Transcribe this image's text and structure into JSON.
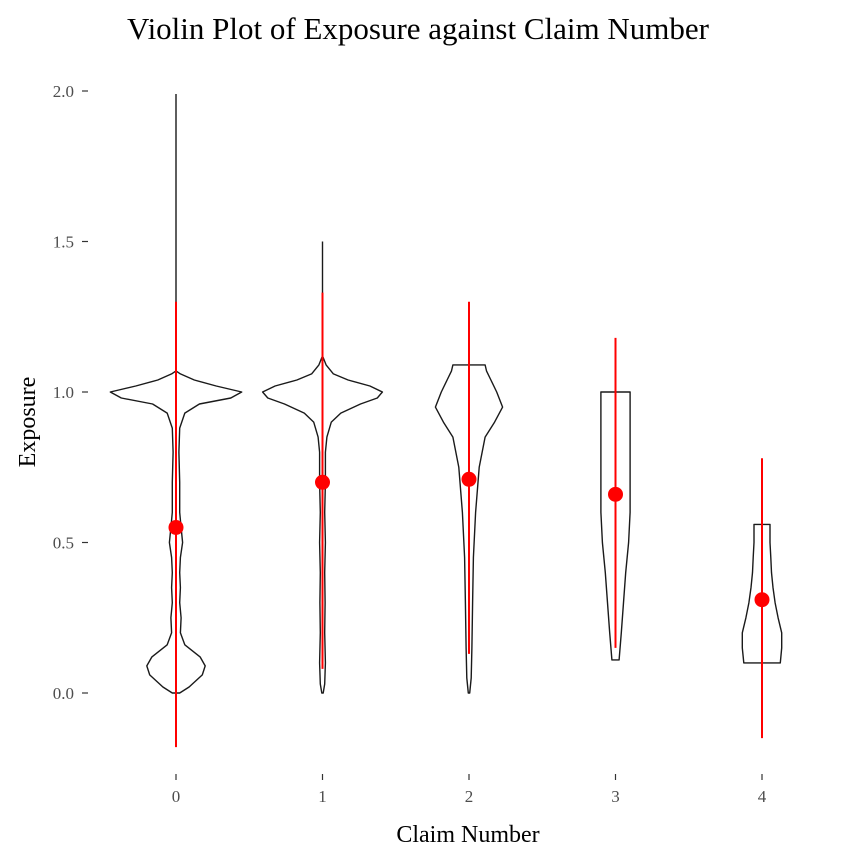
{
  "chart_data": {
    "type": "violin",
    "title": "Violin Plot of Exposure against Claim Number",
    "xlabel": "Claim Number",
    "ylabel": "Exposure",
    "categories": [
      "0",
      "1",
      "2",
      "3",
      "4"
    ],
    "y_ticks": [
      "0.0",
      "0.5",
      "1.0",
      "1.5",
      "2.0"
    ],
    "ylim": [
      -0.25,
      2.05
    ],
    "grid": false,
    "colors": {
      "violin_outline": "#1a1a1a",
      "summary": "#ff0000"
    },
    "violins": [
      {
        "category": "0",
        "min": 0.0,
        "max": 1.99,
        "tail_min": 1.07,
        "profile": [
          [
            0.0,
            0.05
          ],
          [
            0.02,
            0.18
          ],
          [
            0.06,
            0.36
          ],
          [
            0.09,
            0.4
          ],
          [
            0.12,
            0.33
          ],
          [
            0.16,
            0.12
          ],
          [
            0.2,
            0.06
          ],
          [
            0.25,
            0.07
          ],
          [
            0.3,
            0.05
          ],
          [
            0.35,
            0.06
          ],
          [
            0.4,
            0.05
          ],
          [
            0.45,
            0.06
          ],
          [
            0.5,
            0.09
          ],
          [
            0.55,
            0.07
          ],
          [
            0.6,
            0.05
          ],
          [
            0.7,
            0.05
          ],
          [
            0.8,
            0.04
          ],
          [
            0.88,
            0.05
          ],
          [
            0.93,
            0.12
          ],
          [
            0.96,
            0.32
          ],
          [
            0.98,
            0.75
          ],
          [
            1.0,
            0.9
          ],
          [
            1.02,
            0.55
          ],
          [
            1.04,
            0.25
          ],
          [
            1.06,
            0.06
          ],
          [
            1.07,
            0.0
          ]
        ]
      },
      {
        "category": "1",
        "min": 0.0,
        "max": 1.5,
        "tail_min": 1.12,
        "profile": [
          [
            0.0,
            0.01
          ],
          [
            0.03,
            0.03
          ],
          [
            0.1,
            0.04
          ],
          [
            0.2,
            0.03
          ],
          [
            0.3,
            0.035
          ],
          [
            0.4,
            0.03
          ],
          [
            0.5,
            0.04
          ],
          [
            0.6,
            0.03
          ],
          [
            0.7,
            0.04
          ],
          [
            0.8,
            0.04
          ],
          [
            0.85,
            0.06
          ],
          [
            0.9,
            0.12
          ],
          [
            0.93,
            0.25
          ],
          [
            0.96,
            0.52
          ],
          [
            0.98,
            0.75
          ],
          [
            1.0,
            0.82
          ],
          [
            1.02,
            0.65
          ],
          [
            1.04,
            0.35
          ],
          [
            1.06,
            0.15
          ],
          [
            1.09,
            0.05
          ],
          [
            1.12,
            0.0
          ]
        ]
      },
      {
        "category": "2",
        "min": 0.0,
        "max": 1.09,
        "profile": [
          [
            0.0,
            0.01
          ],
          [
            0.05,
            0.03
          ],
          [
            0.15,
            0.04
          ],
          [
            0.3,
            0.05
          ],
          [
            0.45,
            0.06
          ],
          [
            0.6,
            0.09
          ],
          [
            0.75,
            0.14
          ],
          [
            0.85,
            0.22
          ],
          [
            0.9,
            0.35
          ],
          [
            0.95,
            0.46
          ],
          [
            1.0,
            0.38
          ],
          [
            1.04,
            0.3
          ],
          [
            1.07,
            0.24
          ],
          [
            1.09,
            0.22
          ]
        ]
      },
      {
        "category": "3",
        "min": 0.11,
        "max": 1.0,
        "profile": [
          [
            0.11,
            0.05
          ],
          [
            0.2,
            0.08
          ],
          [
            0.3,
            0.11
          ],
          [
            0.4,
            0.14
          ],
          [
            0.5,
            0.18
          ],
          [
            0.6,
            0.2
          ],
          [
            0.7,
            0.2
          ],
          [
            0.8,
            0.2
          ],
          [
            0.9,
            0.2
          ],
          [
            1.0,
            0.2
          ]
        ]
      },
      {
        "category": "4",
        "min": 0.1,
        "max": 0.56,
        "profile": [
          [
            0.1,
            0.25
          ],
          [
            0.15,
            0.27
          ],
          [
            0.2,
            0.27
          ],
          [
            0.25,
            0.22
          ],
          [
            0.3,
            0.18
          ],
          [
            0.35,
            0.15
          ],
          [
            0.4,
            0.13
          ],
          [
            0.45,
            0.12
          ],
          [
            0.5,
            0.11
          ],
          [
            0.56,
            0.11
          ]
        ]
      }
    ],
    "summary": [
      {
        "category": "0",
        "mean": 0.55,
        "low": -0.18,
        "high": 1.3
      },
      {
        "category": "1",
        "mean": 0.7,
        "low": 0.08,
        "high": 1.33
      },
      {
        "category": "2",
        "mean": 0.71,
        "low": 0.13,
        "high": 1.3
      },
      {
        "category": "3",
        "mean": 0.66,
        "low": 0.15,
        "high": 1.18
      },
      {
        "category": "4",
        "mean": 0.31,
        "low": -0.15,
        "high": 0.78
      }
    ]
  }
}
